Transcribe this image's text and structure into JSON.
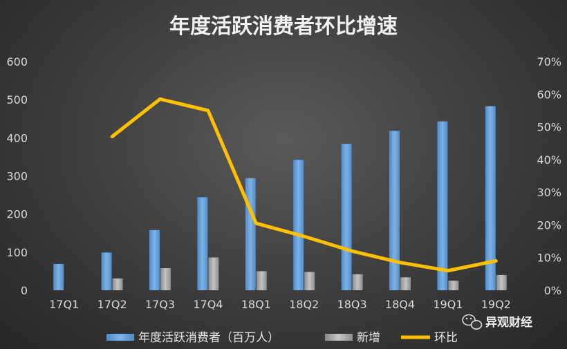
{
  "chart_data": {
    "type": "bar",
    "title": "年度活跃消费者环比增速",
    "categories": [
      "17Q1",
      "17Q2",
      "17Q3",
      "17Q4",
      "18Q1",
      "18Q2",
      "18Q3",
      "18Q4",
      "19Q1",
      "19Q2"
    ],
    "series": [
      {
        "name": "年度活跃消费者（百万人）",
        "type": "bar",
        "axis": "left",
        "color": "#5b9bd5",
        "values": [
          69,
          99,
          158,
          244,
          294,
          342,
          384,
          418,
          443,
          483
        ]
      },
      {
        "name": "新增",
        "type": "bar",
        "axis": "left",
        "color": "#a5a5a5",
        "values": [
          null,
          31,
          58,
          86,
          50,
          48,
          42,
          34,
          25,
          40
        ]
      },
      {
        "name": "环比",
        "type": "line",
        "axis": "right",
        "color": "#ffc000",
        "values": [
          null,
          0.47,
          0.585,
          0.55,
          0.205,
          0.165,
          0.12,
          0.085,
          0.06,
          0.09
        ]
      }
    ],
    "ylim": [
      0,
      600
    ],
    "yticks": [
      "0",
      "100",
      "200",
      "300",
      "400",
      "500",
      "600"
    ],
    "y2lim": [
      0,
      0.7
    ],
    "y2ticks": [
      "0%",
      "10%",
      "20%",
      "30%",
      "40%",
      "50%",
      "60%",
      "70%"
    ],
    "grid": false,
    "legend_position": "bottom"
  },
  "watermark": {
    "text": "异观财经",
    "icon": "wechat-icon"
  }
}
